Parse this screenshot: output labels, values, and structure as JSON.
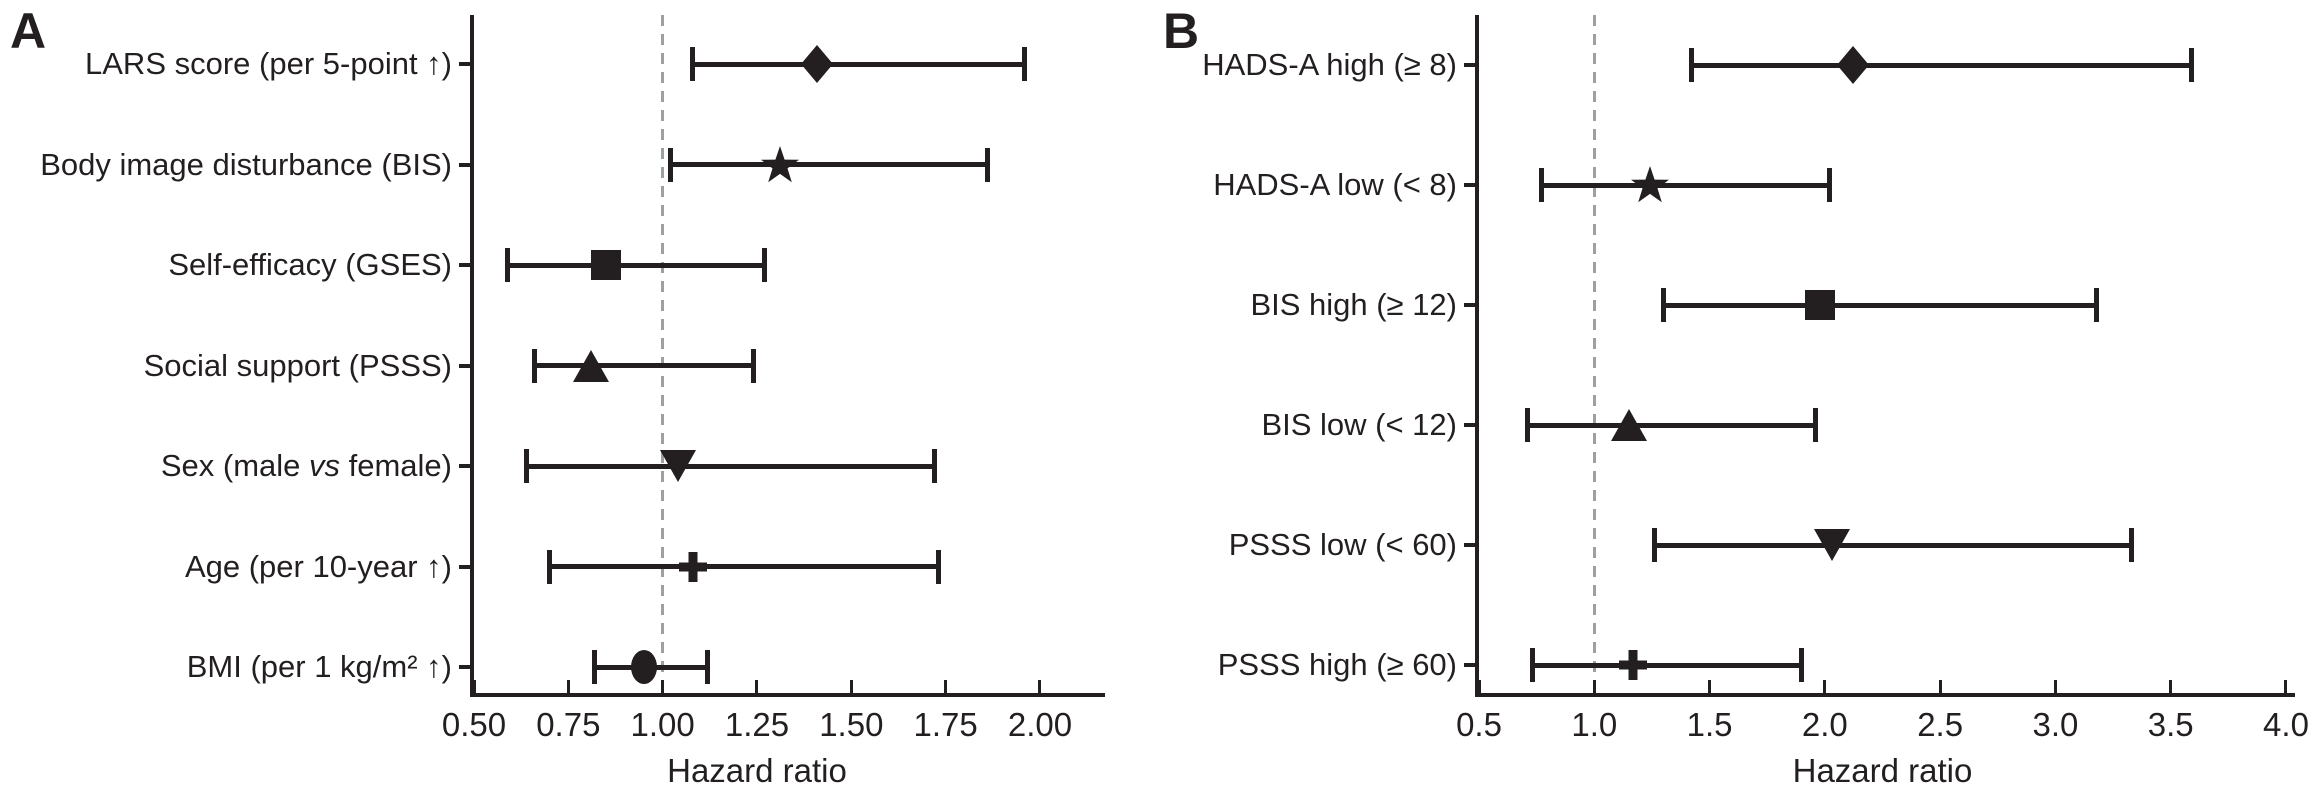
{
  "figure": {
    "background": "#ffffff",
    "ink_color": "#231f20",
    "reference_line_color": "#9d9fa2"
  },
  "chart_data": [
    {
      "type": "forest",
      "panel_label": "A",
      "xlabel": "Hazard ratio",
      "x_ticks": [
        "0.50",
        "0.75",
        "1.00",
        "1.25",
        "1.50",
        "1.75",
        "2.00"
      ],
      "x_tick_values": [
        0.5,
        0.75,
        1.0,
        1.25,
        1.5,
        1.75,
        2.0
      ],
      "xlim": [
        0.5,
        2.17
      ],
      "reference_line": 1.0,
      "grid": false,
      "rows": [
        {
          "label_segments": [
            {
              "text": "LARS score (per 5-point ↑)",
              "italic": false
            }
          ],
          "marker": "diamond",
          "hr": 1.41,
          "ci_low": 1.08,
          "ci_high": 1.96
        },
        {
          "label_segments": [
            {
              "text": "Body image disturbance (BIS)",
              "italic": false
            }
          ],
          "marker": "star",
          "hr": 1.31,
          "ci_low": 1.02,
          "ci_high": 1.86
        },
        {
          "label_segments": [
            {
              "text": "Self-efficacy (GSES)",
              "italic": false
            }
          ],
          "marker": "square",
          "hr": 0.85,
          "ci_low": 0.59,
          "ci_high": 1.27
        },
        {
          "label_segments": [
            {
              "text": "Social support (PSSS)",
              "italic": false
            }
          ],
          "marker": "triangle-up",
          "hr": 0.81,
          "ci_low": 0.66,
          "ci_high": 1.24
        },
        {
          "label_segments": [
            {
              "text": "Sex (male ",
              "italic": false
            },
            {
              "text": "vs",
              "italic": true
            },
            {
              "text": " female)",
              "italic": false
            }
          ],
          "marker": "triangle-down",
          "hr": 1.04,
          "ci_low": 0.64,
          "ci_high": 1.72
        },
        {
          "label_segments": [
            {
              "text": "Age (per 10-year ↑)",
              "italic": false
            }
          ],
          "marker": "plus",
          "hr": 1.08,
          "ci_low": 0.7,
          "ci_high": 1.73
        },
        {
          "label_segments": [
            {
              "text": "BMI (per 1 kg/m² ↑)",
              "italic": false
            }
          ],
          "marker": "ellipse",
          "hr": 0.95,
          "ci_low": 0.82,
          "ci_high": 1.12
        }
      ]
    },
    {
      "type": "forest",
      "panel_label": "B",
      "xlabel": "Hazard ratio",
      "x_ticks": [
        "0.5",
        "1.0",
        "1.5",
        "2.0",
        "2.5",
        "3.0",
        "3.5",
        "4.0"
      ],
      "x_tick_values": [
        0.5,
        1.0,
        1.5,
        2.0,
        2.5,
        3.0,
        3.5,
        4.0
      ],
      "xlim": [
        0.5,
        4.04
      ],
      "reference_line": 1.0,
      "grid": false,
      "rows": [
        {
          "label_segments": [
            {
              "text": "HADS-A high (≥ 8)",
              "italic": false
            }
          ],
          "marker": "diamond",
          "hr": 2.12,
          "ci_low": 1.42,
          "ci_high": 3.59
        },
        {
          "label_segments": [
            {
              "text": "HADS-A low (< 8)",
              "italic": false
            }
          ],
          "marker": "star",
          "hr": 1.24,
          "ci_low": 0.77,
          "ci_high": 2.02
        },
        {
          "label_segments": [
            {
              "text": "BIS high (≥ 12)",
              "italic": false
            }
          ],
          "marker": "square",
          "hr": 1.98,
          "ci_low": 1.3,
          "ci_high": 3.18
        },
        {
          "label_segments": [
            {
              "text": "BIS low (< 12)",
              "italic": false
            }
          ],
          "marker": "triangle-up",
          "hr": 1.15,
          "ci_low": 0.71,
          "ci_high": 1.96
        },
        {
          "label_segments": [
            {
              "text": "PSSS low (< 60)",
              "italic": false
            }
          ],
          "marker": "triangle-down",
          "hr": 2.03,
          "ci_low": 1.26,
          "ci_high": 3.33
        },
        {
          "label_segments": [
            {
              "text": "PSSS high (≥ 60)",
              "italic": false
            }
          ],
          "marker": "plus",
          "hr": 1.17,
          "ci_low": 0.73,
          "ci_high": 1.9
        }
      ]
    }
  ]
}
